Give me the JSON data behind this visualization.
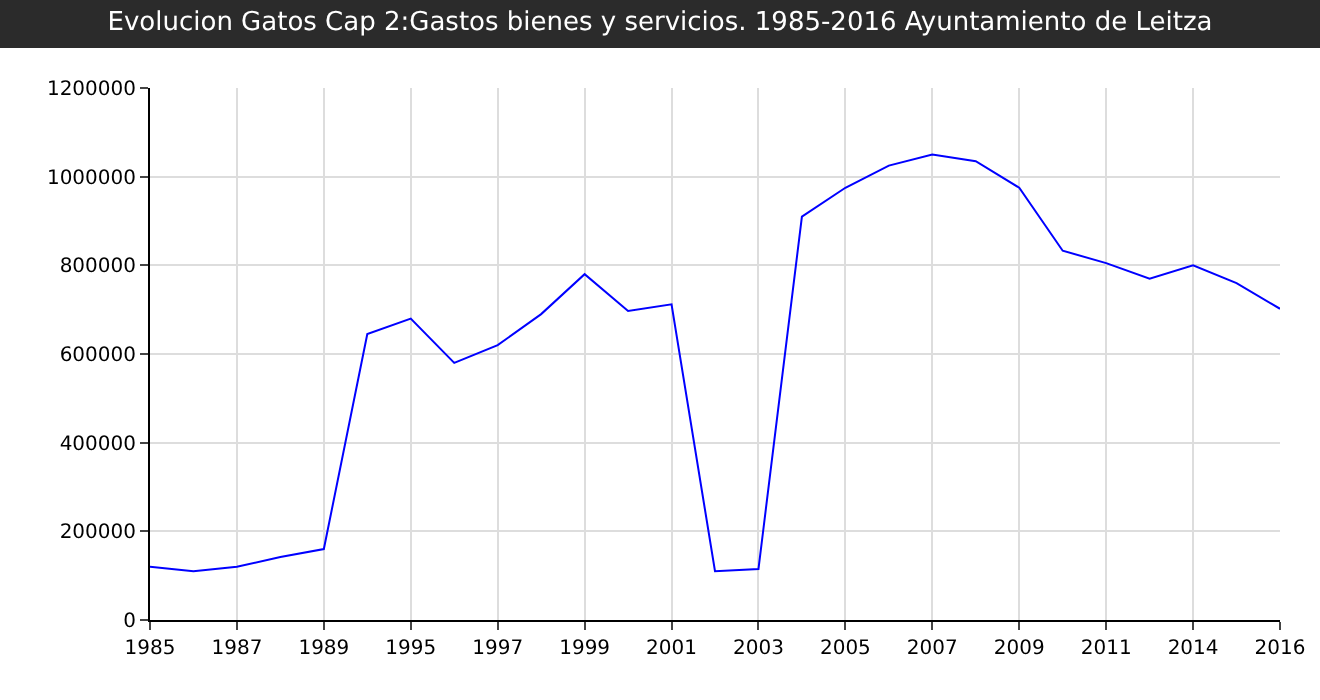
{
  "chart_data": {
    "type": "line",
    "title": "Evolucion Gatos Cap 2:Gastos bienes y servicios. 1985-2016 Ayuntamiento de Leitza",
    "categories": [
      "1985",
      null,
      "1987",
      null,
      "1989",
      null,
      "1995",
      null,
      "1997",
      null,
      "1999",
      null,
      "2001",
      null,
      "2003",
      null,
      "2005",
      null,
      "2007",
      null,
      "2009",
      null,
      "2011",
      null,
      "2014",
      null,
      "2016"
    ],
    "series": [
      {
        "color": "#0000ff",
        "values": [
          120000,
          110000,
          120000,
          142000,
          160000,
          645000,
          680000,
          580000,
          620000,
          690000,
          780000,
          697000,
          712000,
          110000,
          115000,
          910000,
          975000,
          1025000,
          1050000,
          1035000,
          975000,
          833000,
          805000,
          770000,
          800000,
          760000,
          702000
        ]
      }
    ],
    "ylim": [
      0,
      1200000
    ],
    "yticks": [
      0,
      200000,
      400000,
      600000,
      800000,
      1000000,
      1200000
    ],
    "grid": true,
    "marker": "none",
    "line_style": "solid"
  }
}
